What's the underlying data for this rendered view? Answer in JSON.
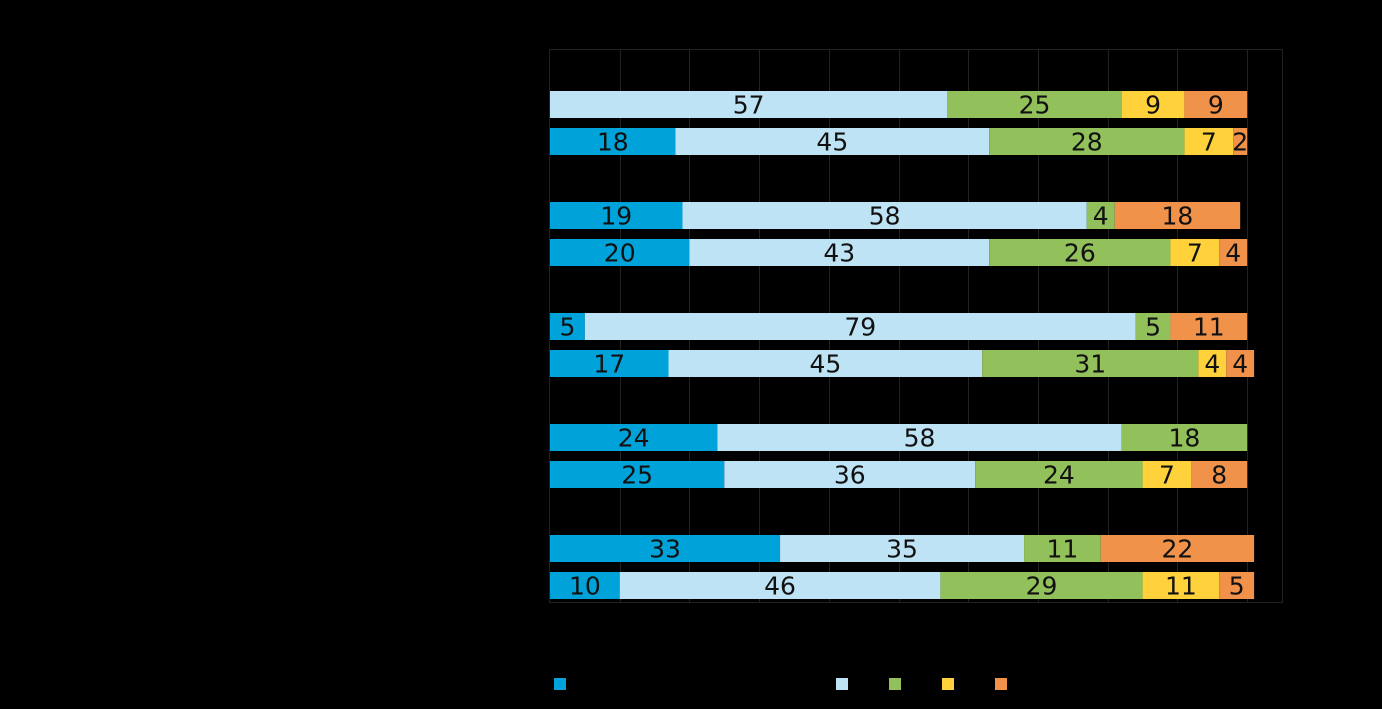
{
  "chart_data": {
    "type": "bar",
    "orientation": "horizontal",
    "stacked": true,
    "grid": true,
    "legend_position": "bottom",
    "xlim": [
      0,
      105
    ],
    "series_colors": [
      "#00a3d9",
      "#bde3f4",
      "#92c05a",
      "#ffd23b",
      "#f0924a"
    ],
    "rows": [
      {
        "values": [
          0,
          57,
          25,
          9,
          9
        ]
      },
      {
        "values": [
          18,
          45,
          28,
          7,
          2
        ]
      },
      {
        "values": [
          19,
          58,
          4,
          0,
          18
        ]
      },
      {
        "values": [
          20,
          43,
          26,
          7,
          4
        ]
      },
      {
        "values": [
          5,
          79,
          5,
          0,
          11
        ]
      },
      {
        "values": [
          17,
          45,
          31,
          4,
          4
        ]
      },
      {
        "values": [
          24,
          58,
          18,
          0,
          0
        ]
      },
      {
        "values": [
          25,
          36,
          24,
          7,
          8
        ]
      },
      {
        "values": [
          33,
          35,
          11,
          0,
          22
        ]
      },
      {
        "values": [
          10,
          46,
          29,
          11,
          5
        ]
      }
    ]
  }
}
